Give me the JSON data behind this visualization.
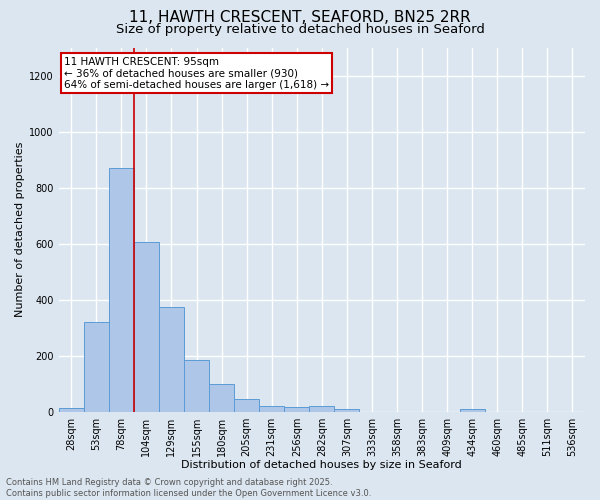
{
  "title": "11, HAWTH CRESCENT, SEAFORD, BN25 2RR",
  "subtitle": "Size of property relative to detached houses in Seaford",
  "xlabel": "Distribution of detached houses by size in Seaford",
  "ylabel": "Number of detached properties",
  "bar_labels": [
    "28sqm",
    "53sqm",
    "78sqm",
    "104sqm",
    "129sqm",
    "155sqm",
    "180sqm",
    "205sqm",
    "231sqm",
    "256sqm",
    "282sqm",
    "307sqm",
    "333sqm",
    "358sqm",
    "383sqm",
    "409sqm",
    "434sqm",
    "460sqm",
    "485sqm",
    "511sqm",
    "536sqm"
  ],
  "bar_values": [
    12,
    320,
    870,
    605,
    375,
    185,
    100,
    45,
    20,
    15,
    20,
    8,
    0,
    0,
    0,
    0,
    10,
    0,
    0,
    0,
    0
  ],
  "bar_color": "#aec6e8",
  "bar_edge_color": "#5b9bd5",
  "vline_color": "#cc0000",
  "vline_pos": 2.5,
  "ylim": [
    0,
    1300
  ],
  "yticks": [
    0,
    200,
    400,
    600,
    800,
    1000,
    1200
  ],
  "annotation_title": "11 HAWTH CRESCENT: 95sqm",
  "annotation_line1": "← 36% of detached houses are smaller (930)",
  "annotation_line2": "64% of semi-detached houses are larger (1,618) →",
  "annotation_box_facecolor": "#ffffff",
  "annotation_box_edgecolor": "#cc0000",
  "footer_line1": "Contains HM Land Registry data © Crown copyright and database right 2025.",
  "footer_line2": "Contains public sector information licensed under the Open Government Licence v3.0.",
  "background_color": "#dce6f0",
  "plot_background_color": "#dce6f0",
  "grid_color": "#ffffff",
  "title_fontsize": 11,
  "subtitle_fontsize": 9.5,
  "tick_fontsize": 7,
  "label_fontsize": 8,
  "footer_fontsize": 6
}
